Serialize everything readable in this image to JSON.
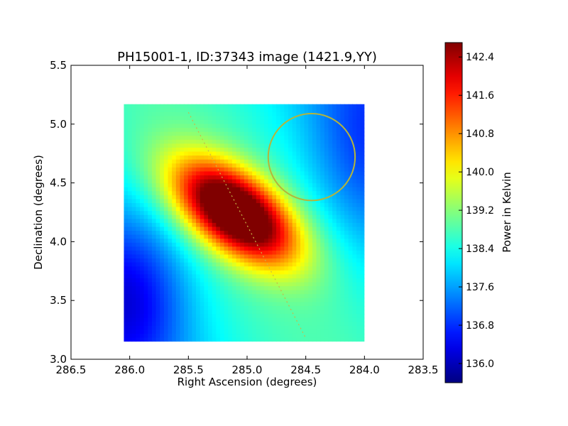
{
  "chart_data": {
    "type": "heatmap",
    "title": "PH15001-1, ID:37343 image (1421.9,YY)",
    "xlabel": "Right Ascension (degrees)",
    "ylabel": "Declination (degrees)",
    "xlim": [
      286.5,
      283.5
    ],
    "ylim": [
      3.0,
      5.5
    ],
    "x_ticks": [
      "286.5",
      "286.0",
      "285.5",
      "285.0",
      "284.5",
      "284.0",
      "283.5"
    ],
    "y_ticks": [
      "3.0",
      "3.5",
      "4.0",
      "4.5",
      "5.0",
      "5.5"
    ],
    "image_extent": {
      "ra_min": 284.0,
      "ra_max": 286.05,
      "dec_min": 3.15,
      "dec_max": 5.17
    },
    "colormap": "jet",
    "colorbar": {
      "label": "Power in Kelvin",
      "vmin": 135.6,
      "vmax": 142.7,
      "ticks": [
        "136.0",
        "136.8",
        "137.6",
        "138.4",
        "139.2",
        "140.0",
        "140.8",
        "141.6",
        "142.4"
      ]
    },
    "peak": {
      "ra": 285.1,
      "dec": 4.25,
      "value": 142.7
    },
    "minimum": {
      "ra": 286.0,
      "dec": 3.55,
      "value": 135.7
    },
    "overlays": {
      "circle": {
        "ra": 284.45,
        "dec": 4.72,
        "radius_deg": 0.37,
        "color": "#b5b53a"
      },
      "scan_line": {
        "start": {
          "ra": 285.5,
          "dec": 5.1
        },
        "end": {
          "ra": 284.5,
          "dec": 3.18
        },
        "color": "#c8b848",
        "style": "dotted"
      }
    },
    "grid": false
  }
}
